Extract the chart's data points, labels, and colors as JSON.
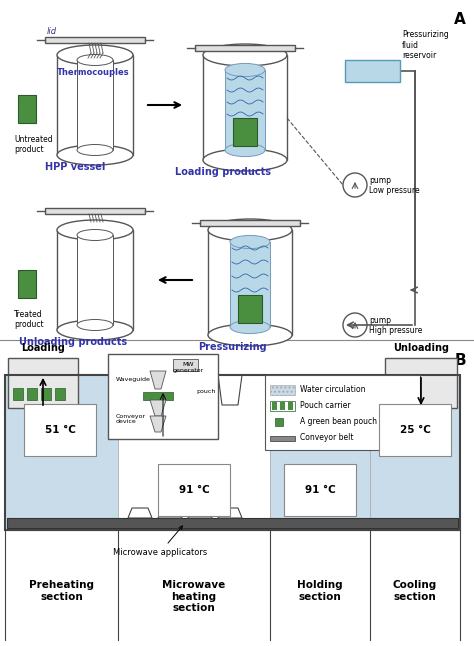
{
  "fig_width": 4.74,
  "fig_height": 6.46,
  "dpi": 100,
  "background": "#ffffff",
  "section_A_label": "A",
  "section_B_label": "B",
  "vessel_color": "#e8e8e8",
  "vessel_edge": "#555555",
  "fluid_color": "#b8d8e8",
  "green_color": "#4a8f3f",
  "pump_color": "#cccccc",
  "reservoir_color": "#b8d8e8",
  "water_circ_color": "#c8dcea",
  "section_labels": [
    "Preheating\nsection",
    "Microwave\nheating\nsection",
    "Holding\nsection",
    "Cooling\nsection"
  ],
  "temps": [
    "51 °C",
    "91 °C",
    "91 °C",
    "25 °C"
  ],
  "legend_items": [
    "Water circulation",
    "Pouch carrier",
    "A green bean pouch",
    "Conveyor belt"
  ]
}
